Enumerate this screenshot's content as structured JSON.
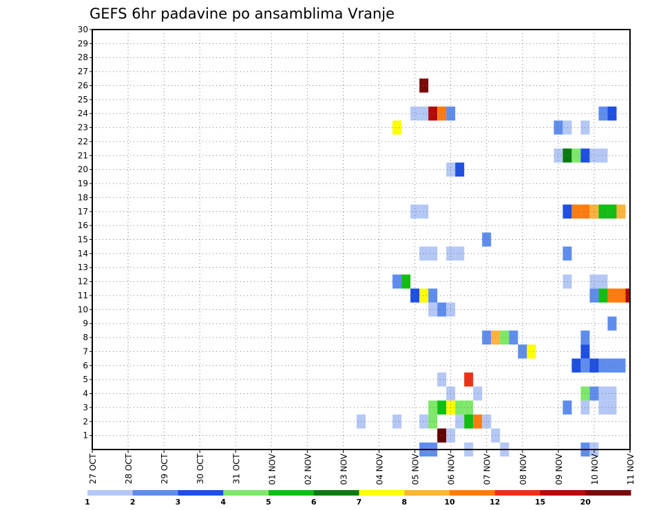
{
  "chart_data": {
    "type": "heatmap",
    "title": "GEFS 6hr padavine po ansamblima Vranje",
    "xlabel": "",
    "ylabel": "",
    "x_ticks": [
      "27 OCT",
      "28 OCT",
      "29 OCT",
      "30 OCT",
      "31 OCT",
      "01 NOV",
      "02 NOV",
      "03 NOV",
      "04 NOV",
      "05 NOV",
      "06 NOV",
      "07 NOV",
      "08 NOV",
      "09 NOV",
      "10 NOV",
      "11 NOV"
    ],
    "y_ticks": [
      "1",
      "2",
      "3",
      "4",
      "5",
      "6",
      "7",
      "8",
      "9",
      "10",
      "11",
      "12",
      "13",
      "14",
      "15",
      "16",
      "17",
      "18",
      "19",
      "20",
      "21",
      "22",
      "23",
      "24",
      "25",
      "26",
      "27",
      "28",
      "29",
      "30"
    ],
    "xlim": [
      0,
      60
    ],
    "ylim": [
      0,
      30
    ],
    "x_unit": "6-hour steps from 27 OCT 00Z",
    "grid": true,
    "legend_placement": "bottom",
    "legend": {
      "labels": [
        "1",
        "2",
        "3",
        "4",
        "5",
        "6",
        "7",
        "8",
        "10",
        "12",
        "15",
        "20"
      ],
      "colors": [
        "#b4c7f5",
        "#5f8ded",
        "#1e4fe0",
        "#7de86a",
        "#13bd13",
        "#0a7a10",
        "#ffff00",
        "#ffb43c",
        "#ff7d10",
        "#e83218",
        "#b40a0a",
        "#7a0a0a"
      ]
    },
    "colors": [
      "#b4c7f5",
      "#5f8ded",
      "#1e4fe0",
      "#7de86a",
      "#13bd13",
      "#0a7a10",
      "#ffff00",
      "#ffb43c",
      "#ff7d10",
      "#e83218",
      "#b40a0a",
      "#7a0a0a",
      "#620000"
    ],
    "cells": [
      [
        37,
        26,
        11
      ],
      [
        37,
        24,
        0
      ],
      [
        36,
        24,
        0
      ],
      [
        38,
        24,
        10
      ],
      [
        39,
        24,
        8
      ],
      [
        40,
        24,
        1
      ],
      [
        57,
        24,
        1
      ],
      [
        58,
        24,
        2
      ],
      [
        34,
        23,
        6
      ],
      [
        52,
        23,
        1
      ],
      [
        53,
        23,
        0
      ],
      [
        55,
        23,
        0
      ],
      [
        52,
        21,
        0
      ],
      [
        53,
        21,
        5
      ],
      [
        54,
        21,
        3
      ],
      [
        55,
        21,
        2
      ],
      [
        56,
        21,
        0
      ],
      [
        57,
        21,
        0
      ],
      [
        40,
        20,
        0
      ],
      [
        41,
        20,
        2
      ],
      [
        36,
        17,
        0
      ],
      [
        37,
        17,
        0
      ],
      [
        53,
        17,
        2
      ],
      [
        54,
        17,
        8
      ],
      [
        55,
        17,
        8
      ],
      [
        56,
        17,
        7
      ],
      [
        57,
        17,
        4
      ],
      [
        58,
        17,
        4
      ],
      [
        59,
        17,
        7
      ],
      [
        44,
        15,
        1
      ],
      [
        37,
        14,
        0
      ],
      [
        38,
        14,
        0
      ],
      [
        40,
        14,
        0
      ],
      [
        41,
        14,
        0
      ],
      [
        53,
        14,
        1
      ],
      [
        34,
        12,
        1
      ],
      [
        35,
        12,
        4
      ],
      [
        53,
        12,
        0
      ],
      [
        56,
        12,
        0
      ],
      [
        57,
        12,
        0
      ],
      [
        36,
        11,
        2
      ],
      [
        37,
        11,
        6
      ],
      [
        38,
        11,
        1
      ],
      [
        56,
        11,
        1
      ],
      [
        57,
        11,
        4
      ],
      [
        58,
        11,
        8
      ],
      [
        59,
        11,
        8
      ],
      [
        60,
        11,
        10
      ],
      [
        38,
        10,
        0
      ],
      [
        39,
        10,
        1
      ],
      [
        40,
        10,
        0
      ],
      [
        58,
        9,
        1
      ],
      [
        44,
        8,
        1
      ],
      [
        45,
        8,
        7
      ],
      [
        46,
        8,
        3
      ],
      [
        47,
        8,
        1
      ],
      [
        55,
        8,
        1
      ],
      [
        48,
        7,
        1
      ],
      [
        49,
        7,
        6
      ],
      [
        55,
        7,
        2
      ],
      [
        54,
        6,
        2
      ],
      [
        55,
        6,
        1
      ],
      [
        56,
        6,
        2
      ],
      [
        57,
        6,
        1
      ],
      [
        58,
        6,
        1
      ],
      [
        59,
        6,
        1
      ],
      [
        39,
        5,
        0
      ],
      [
        42,
        5,
        9
      ],
      [
        40,
        4,
        0
      ],
      [
        43,
        4,
        0
      ],
      [
        55,
        4,
        3
      ],
      [
        56,
        4,
        1
      ],
      [
        57,
        4,
        0
      ],
      [
        58,
        4,
        0
      ],
      [
        38,
        3,
        3
      ],
      [
        39,
        3,
        4
      ],
      [
        40,
        3,
        6
      ],
      [
        41,
        3,
        3
      ],
      [
        42,
        3,
        3
      ],
      [
        53,
        3,
        1
      ],
      [
        55,
        3,
        0
      ],
      [
        57,
        3,
        0
      ],
      [
        58,
        3,
        0
      ],
      [
        30,
        2,
        0
      ],
      [
        34,
        2,
        0
      ],
      [
        37,
        2,
        0
      ],
      [
        38,
        2,
        3
      ],
      [
        41,
        2,
        0
      ],
      [
        42,
        2,
        4
      ],
      [
        43,
        2,
        8
      ],
      [
        44,
        2,
        0
      ],
      [
        39,
        1,
        12
      ],
      [
        40,
        1,
        0
      ],
      [
        45,
        1,
        0
      ],
      [
        37,
        0,
        1
      ],
      [
        38,
        0,
        1
      ],
      [
        42,
        0,
        0
      ],
      [
        46,
        0,
        0
      ],
      [
        55,
        0,
        1
      ],
      [
        56,
        0,
        0
      ]
    ]
  }
}
